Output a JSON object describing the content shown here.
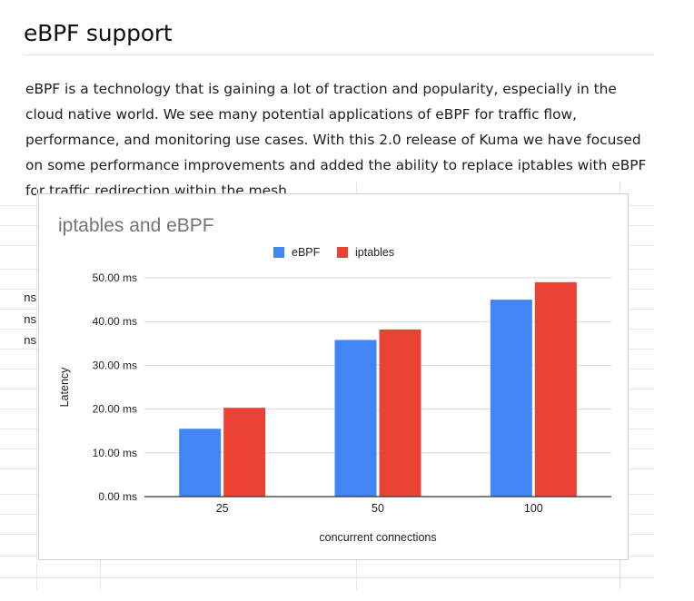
{
  "article": {
    "heading": "eBPF support",
    "paragraph": "eBPF is a technology that is gaining a lot of traction and popularity, especially in the cloud native world. We see many potential applications of eBPF for traffic flow, performance, and monitoring use cases. With this 2.0 release of Kuma we have focused on some performance improvements and added the ability to replace iptables with eBPF for traffic redirection within the mesh."
  },
  "sheet": {
    "clipped_cells": [
      "ns",
      "ns",
      "ns"
    ]
  },
  "chart_data": {
    "type": "bar",
    "title": "iptables and eBPF",
    "xlabel": "concurrent connections",
    "ylabel": "Latency",
    "categories": [
      "25",
      "50",
      "100"
    ],
    "series": [
      {
        "name": "eBPF",
        "color": "#4285f4",
        "values": [
          15.5,
          35.8,
          45.0
        ]
      },
      {
        "name": "iptables",
        "color": "#ea4335",
        "values": [
          20.3,
          38.2,
          49.0
        ]
      }
    ],
    "ylim": [
      0,
      50
    ],
    "yticks": [
      0,
      10,
      20,
      30,
      40,
      50
    ],
    "ytick_labels": [
      "0.00 ms",
      "10.00 ms",
      "20.00 ms",
      "30.00 ms",
      "40.00 ms",
      "50.00 ms"
    ],
    "legend_position": "top-center",
    "grid": true
  }
}
